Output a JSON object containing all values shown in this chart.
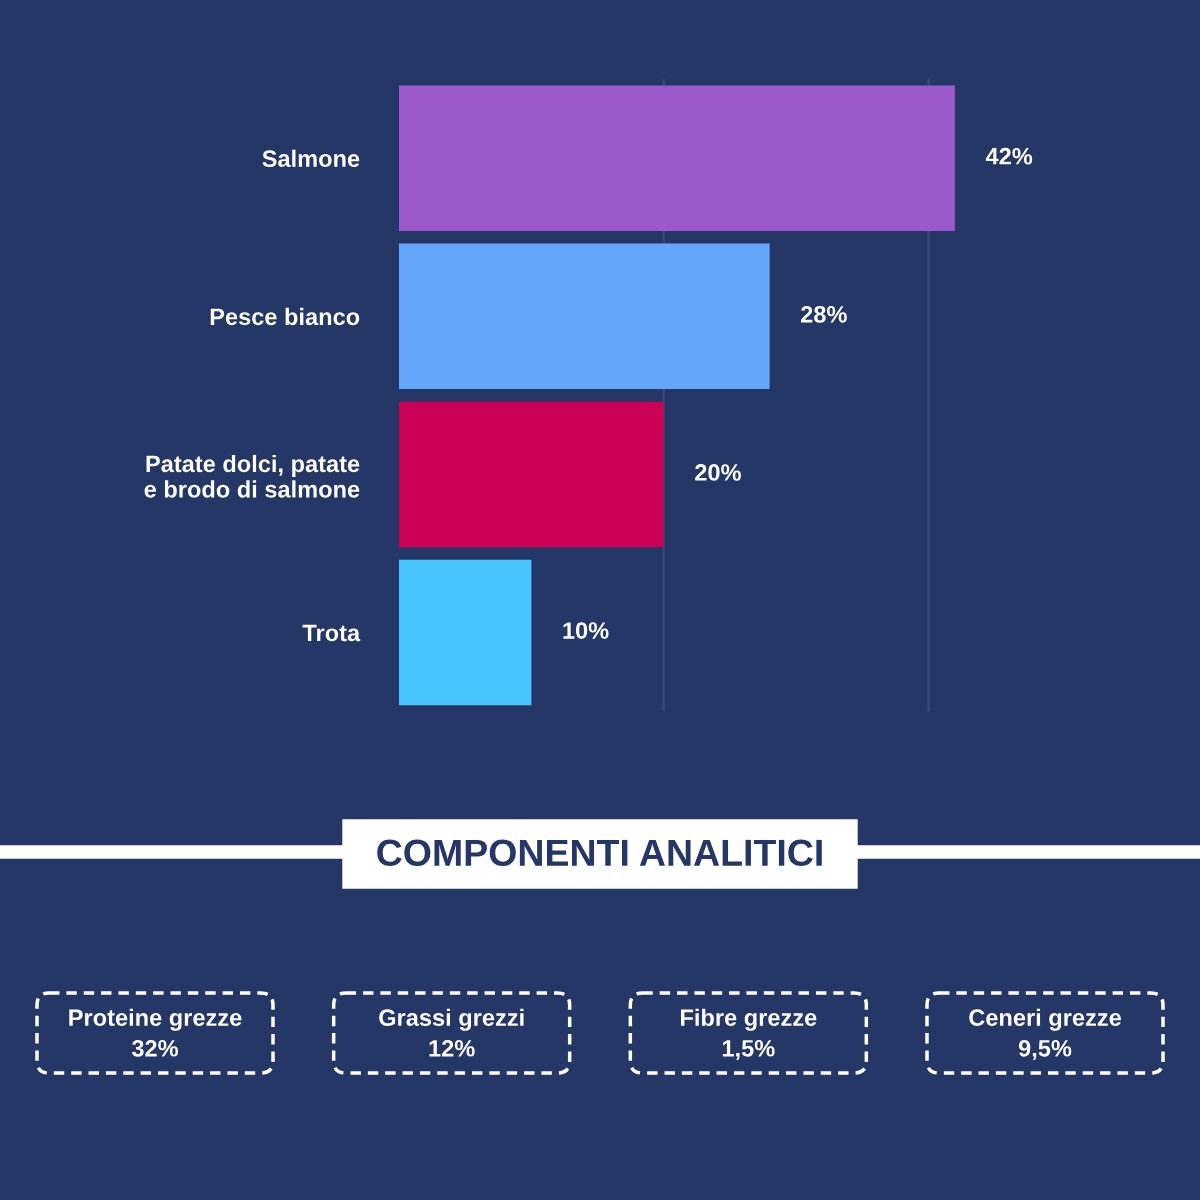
{
  "chart_data": [
    {
      "type": "bar",
      "orientation": "horizontal",
      "categories": [
        "Salmone",
        "Pesce bianco",
        "Patate dolci, patate\ne brodo di salmone",
        "Trota"
      ],
      "values": [
        42,
        28,
        20,
        10
      ],
      "colors": [
        "#9b59cc",
        "#64a6fa",
        "#cc0055",
        "#48c4fc"
      ],
      "value_labels": [
        "42%",
        "28%",
        "20%",
        "10%"
      ],
      "ref_lines": [
        {
          "axis": "x",
          "value": 20,
          "color": "#3b4c7c"
        },
        {
          "axis": "x",
          "value": 40,
          "color": "#3b4c7c"
        }
      ],
      "tick_labels": "y"
    },
    {
      "type": "other",
      "title": "COMPONENTI ANALITICI",
      "annotations": [
        "Proteine grezze\n32%",
        "Grassi grezzi\n12%",
        "Fibre grezze\n1,5%",
        "Ceneri grezze\n9,5%"
      ]
    }
  ]
}
